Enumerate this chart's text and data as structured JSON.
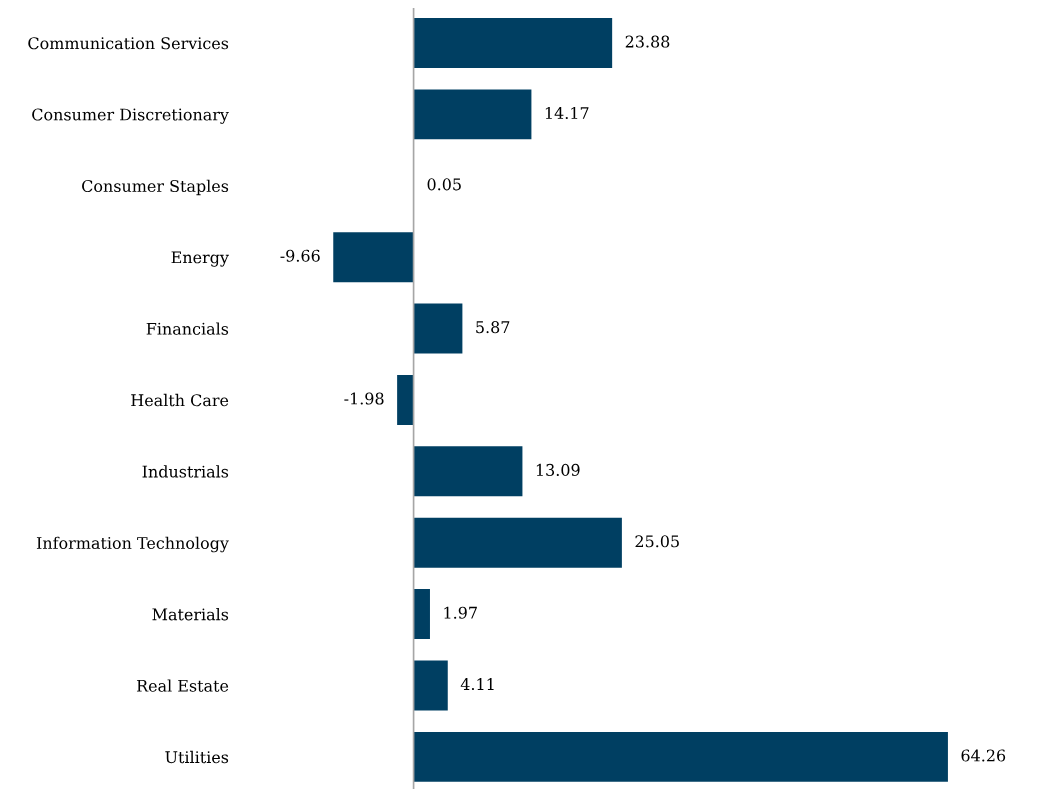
{
  "chart_data": {
    "type": "bar",
    "orientation": "horizontal",
    "categories": [
      "Communication Services",
      "Consumer Discretionary",
      "Consumer Staples",
      "Energy",
      "Financials",
      "Health Care",
      "Industrials",
      "Information Technology",
      "Materials",
      "Real Estate",
      "Utilities"
    ],
    "values": [
      23.88,
      14.17,
      0.05,
      -9.66,
      5.87,
      -1.98,
      13.09,
      25.05,
      1.97,
      4.11,
      64.26
    ],
    "color": "#003f62",
    "data_labels": true,
    "grid": false,
    "legend": false
  }
}
